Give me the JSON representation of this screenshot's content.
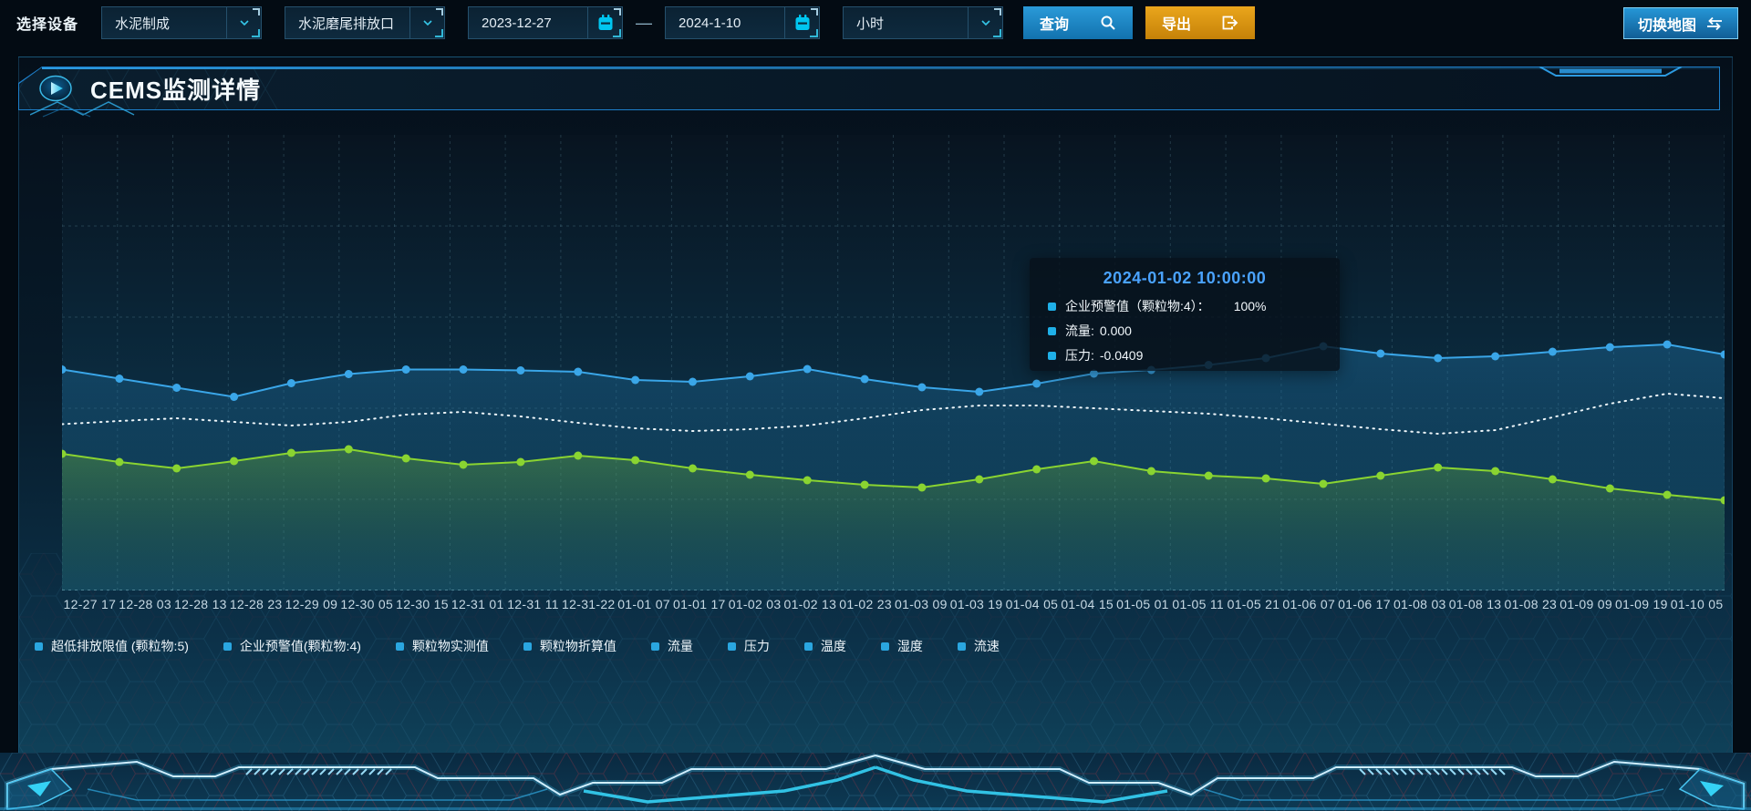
{
  "toolbar": {
    "device_label": "选择设备",
    "select_device_type": "水泥制成",
    "select_outlet": "水泥磨尾排放口",
    "date_start": "2023-12-27",
    "date_separator": "—",
    "date_end": "2024-1-10",
    "select_granularity": "小时",
    "query_label": "查询",
    "export_label": "导出",
    "switch_map_label": "切换地图"
  },
  "panel": {
    "title": "CEMS监测详情"
  },
  "tooltip": {
    "title": "2024-01-02 10:00:00",
    "rows": [
      {
        "label": "企业预警值（颗粒物:4）：",
        "value": "100%"
      },
      {
        "label": "流量:",
        "value": "0.000"
      },
      {
        "label": "压力:",
        "value": "-0.0409"
      }
    ]
  },
  "legend": [
    "超低排放限值 (颗粒物:5)",
    "企业预警值(颗粒物:4)",
    "颗粒物实测值",
    "颗粒物折算值",
    "流量",
    "压力",
    "温度",
    "湿度",
    "流速"
  ],
  "chart_data": {
    "type": "line",
    "title": "",
    "xlabel": "",
    "ylabel": "",
    "y_axis_visible": false,
    "axis_note": "no y-axis labels visible; series values estimated as percent of plot height (0=bottom, 100=top)",
    "grid": "dashed",
    "legend_position": "bottom",
    "x": [
      "12-27 17",
      "12-28 03",
      "12-28 13",
      "12-28 23",
      "12-29 09",
      "12-30 05",
      "12-30 15",
      "12-31 01",
      "12-31 11",
      "12-31-22",
      "01-01 07",
      "01-01 17",
      "01-02 03",
      "01-02 13",
      "01-02 23",
      "01-03 09",
      "01-03 19",
      "01-04 05",
      "01-04 15",
      "01-05 01",
      "01-05 11",
      "01-05 21",
      "01-06 07",
      "01-06 17",
      "01-08 03",
      "01-08 13",
      "01-08 23",
      "01-09 09",
      "01-09 19",
      "01-10 05"
    ],
    "series": [
      {
        "name": "企业预警值(颗粒物:4)",
        "color": "#3aa6e8",
        "style": "solid",
        "markers": true,
        "area": true,
        "values_pct": [
          48.5,
          46.5,
          44.5,
          42.5,
          45.5,
          47.5,
          48.5,
          48.5,
          48.3,
          48,
          46.2,
          45.8,
          47,
          48.6,
          46.4,
          44.6,
          43.6,
          45.4,
          47.6,
          48.4,
          49.5,
          51,
          53.6,
          52,
          51,
          51.4,
          52.4,
          53.4,
          54,
          51.8
        ],
        "tooltip_value": "100%"
      },
      {
        "name": "流量",
        "color": "#eef6fa",
        "style": "dotted",
        "markers": false,
        "area": false,
        "values_pct": [
          36.5,
          37.2,
          37.8,
          37,
          36.2,
          37,
          38.6,
          39.2,
          38.2,
          36.8,
          35.6,
          35,
          35.4,
          36.2,
          37.8,
          39.6,
          40.6,
          40.6,
          40,
          39.4,
          38.8,
          37.8,
          36.6,
          35.4,
          34.4,
          35.2,
          38,
          41,
          43.2,
          42.2
        ],
        "tooltip_value": "0.000"
      },
      {
        "name": "压力",
        "color": "#8ad431",
        "style": "solid",
        "markers": true,
        "area": true,
        "values_pct": [
          30,
          28.2,
          26.8,
          28.4,
          30.2,
          31,
          29,
          27.6,
          28.2,
          29.6,
          28.6,
          26.8,
          25.4,
          24.2,
          23.2,
          22.6,
          24.4,
          26.6,
          28.4,
          26.2,
          25.2,
          24.6,
          23.4,
          25.2,
          27,
          26.2,
          24.4,
          22.4,
          21,
          19.8
        ],
        "tooltip_value": "-0.0409"
      }
    ],
    "hovered_point": "2024-01-02 10:00:00"
  },
  "colors": {
    "accent_blue": "#2a9ad8",
    "accent_orange": "#eaa61c",
    "accent_cyan": "#35c7e8",
    "series_blue": "#3aa6e8",
    "series_green": "#8ad431",
    "series_white": "#eef6fa",
    "tooltip_title": "#4aa3ff",
    "legend_swatch": "#2aa6e0",
    "panel_border": "#1d7fca"
  },
  "icons": {
    "dropdown": "chevron-down-icon",
    "date": "calendar-icon",
    "query": "search-icon",
    "export": "export-icon",
    "switch_map": "swap-arrows-icon",
    "panel_title": "play-icon"
  }
}
